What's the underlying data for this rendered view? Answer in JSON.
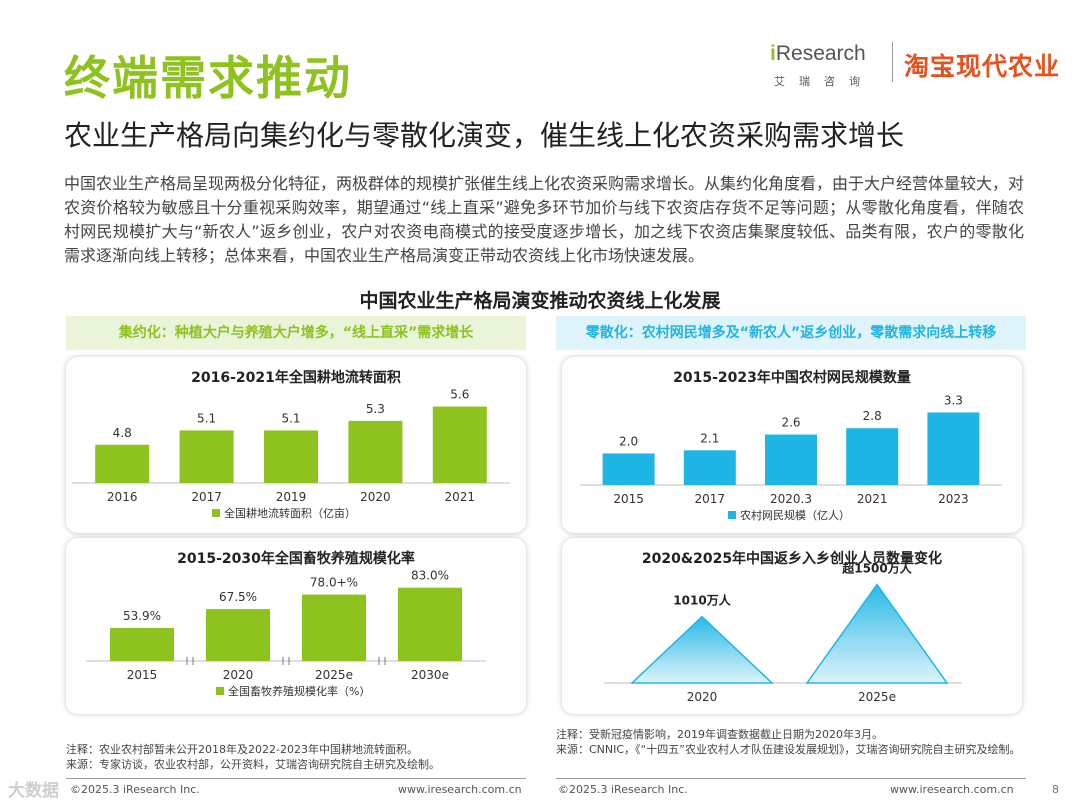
{
  "header": {
    "title": "终端需求推动",
    "subtitle": "农业生产格局向集约化与零散化演变，催生线上化农资采购需求增长",
    "logo_ir_prefix": "i",
    "logo_ir_name": "Research",
    "logo_ir_cn": "艾瑞咨询",
    "logo_taobao": "淘宝现代农业"
  },
  "description": "中国农业生产格局呈现两极分化特征，两极群体的规模扩张催生线上化农资采购需求增长。从集约化角度看，由于大户经营体量较大，对农资价格较为敏感且十分重视采购效率，期望通过“线上直采”避免多环节加价与线下农资店存货不足等问题；从零散化角度看，伴随农村网民规模扩大与“新农人”返乡创业，农户对农资电商模式的接受度逐步增长，加之线下农资店集聚度较低、品类有限，农户的零散化需求逐渐向线上转移；总体来看，中国农业生产格局演变正带动农资线上化市场快速发展。",
  "main_title": "中国农业生产格局演变推动农资线上化发展",
  "banners": {
    "left": "集约化：种植大户与养殖大户增多，“线上直采”需求增长",
    "right": "零散化：农村网民增多及“新农人”返乡创业，零散需求向线上转移"
  },
  "colors": {
    "green": "#8dc21f",
    "blue": "#1fb5e4",
    "title_green": "#8dc21f"
  },
  "chart_data": [
    {
      "type": "bar",
      "title": "2016-2021年全国耕地流转面积",
      "categories": [
        "2016",
        "2017",
        "2019",
        "2020",
        "2021"
      ],
      "values": [
        4.8,
        5.1,
        5.1,
        5.3,
        5.6
      ],
      "labels": [
        "4.8",
        "5.1",
        "5.1",
        "5.3",
        "5.6"
      ],
      "legend": "全国耕地流转面积（亿亩）",
      "color": "#8dc21f",
      "ylim": [
        4.0,
        5.8
      ]
    },
    {
      "type": "bar",
      "title": "2015-2030年全国畜牧养殖规模化率",
      "categories": [
        "2015",
        "2020",
        "2025e",
        "2030e"
      ],
      "values": [
        53.9,
        67.5,
        78.0,
        83.0
      ],
      "labels": [
        "53.9%",
        "67.5%",
        "78.0+%",
        "83.0%"
      ],
      "legend": "全国畜牧养殖规模化率（%）",
      "color": "#8dc21f",
      "ylim": [
        30,
        90
      ],
      "axis_breaks": true
    },
    {
      "type": "bar",
      "title": "2015-2023年中国农村网民规模数量",
      "categories": [
        "2015",
        "2017",
        "2020.3",
        "2021",
        "2023"
      ],
      "values": [
        2.0,
        2.1,
        2.6,
        2.8,
        3.3
      ],
      "labels": [
        "2.0",
        "2.1",
        "2.6",
        "2.8",
        "3.3"
      ],
      "legend": "农村网民规模（亿人）",
      "color": "#1fb5e4",
      "ylim": [
        1.0,
        3.6
      ]
    },
    {
      "type": "area",
      "title": "2020&2025年中国返乡入乡创业人员数量变化",
      "categories": [
        "2020",
        "2025e"
      ],
      "values": [
        1010,
        1500
      ],
      "labels": [
        "1010万人",
        "超1500万人"
      ],
      "color": "#1fb5e4",
      "ylim": [
        0,
        1600
      ]
    }
  ],
  "notes": {
    "left_1": "注释：农业农村部暂未公开2018年及2022-2023年中国耕地流转面积。",
    "left_2": "来源：专家访谈，农业农村部，公开资料，艾瑞咨询研究院自主研究及绘制。",
    "right_1": "注释：受新冠疫情影响，2019年调查数据截止日期为2020年3月。",
    "right_2": "来源：CNNIC，《“十四五”农业农村人才队伍建设发展规划》，艾瑞咨询研究院自主研究及绘制。"
  },
  "footer": {
    "left_copy": "©2025.3 iResearch Inc.",
    "left_url": "www.iresearch.com.cn",
    "right_copy": "©2025.3 iResearch Inc.",
    "right_url": "www.iresearch.com.cn",
    "page": "8",
    "watermark": "大数据"
  }
}
